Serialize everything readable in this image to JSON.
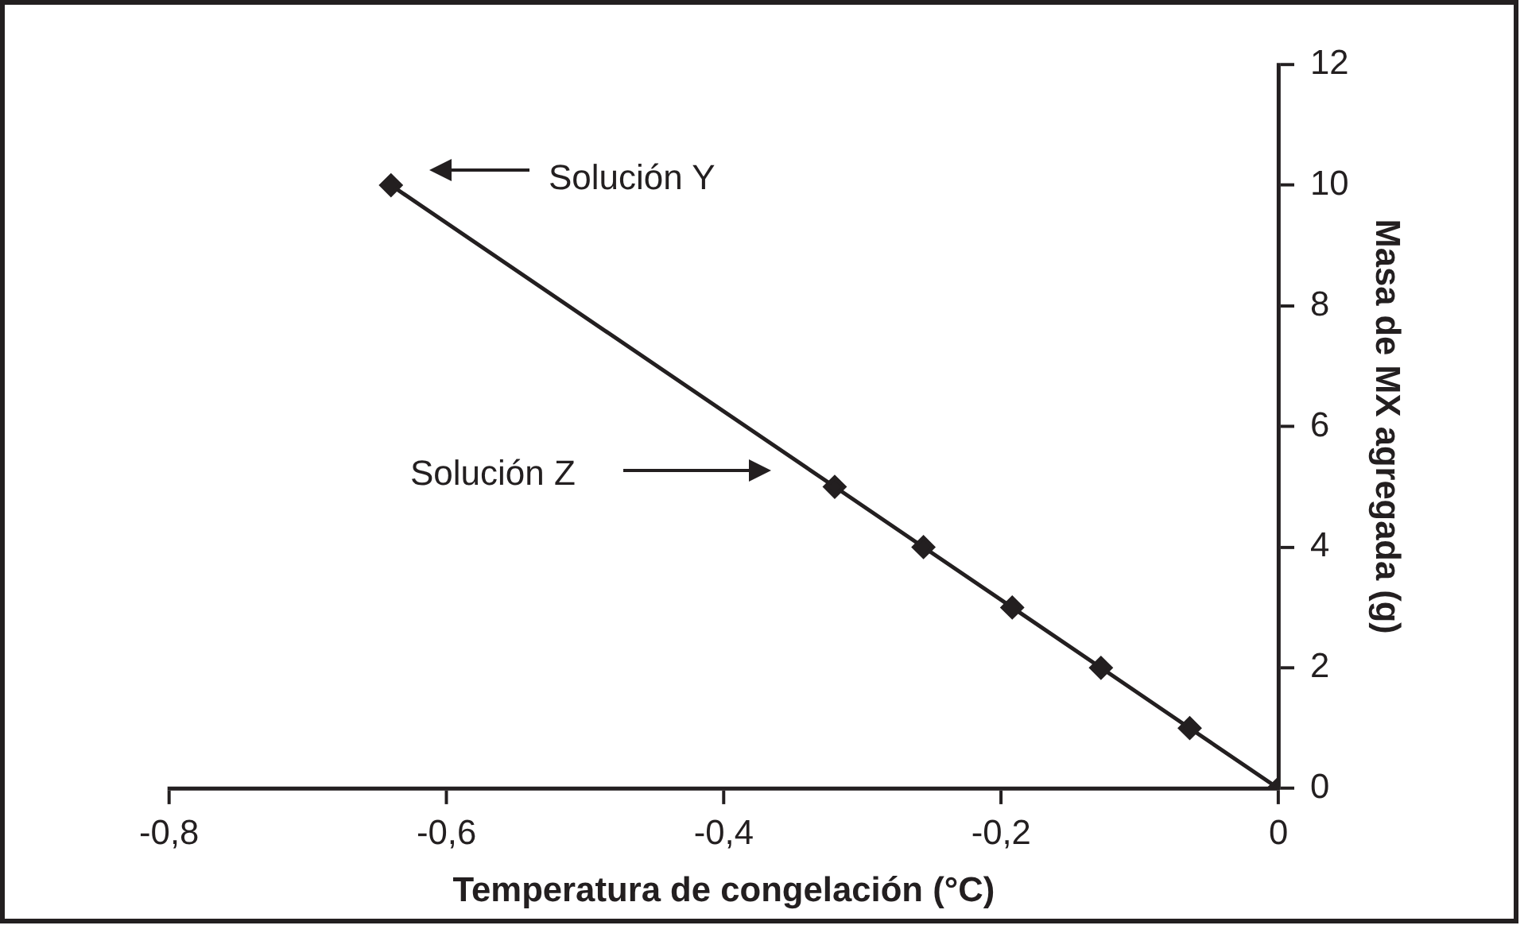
{
  "chart_data": {
    "type": "line",
    "xlabel": "Temperatura de congelación (°C)",
    "ylabel": "Masa de MX agregada (g)",
    "x": [
      -0.64,
      -0.32,
      -0.256,
      -0.192,
      -0.128,
      -0.064,
      0
    ],
    "series": [
      {
        "color": "#231f20",
        "values": [
          10,
          5,
          4,
          3,
          2,
          1,
          0
        ]
      }
    ],
    "xlim": [
      -0.8,
      0
    ],
    "xticks": [
      {
        "value": -0.8,
        "label": "-0,8"
      },
      {
        "value": -0.6,
        "label": "-0,6"
      },
      {
        "value": -0.4,
        "label": "-0,4"
      },
      {
        "value": -0.2,
        "label": "-0,2"
      },
      0
    ],
    "ylim": [
      0,
      12
    ],
    "yticks": [
      0,
      2,
      4,
      6,
      8,
      10,
      12
    ],
    "annotations": [
      "Solución Y",
      "Solución Z"
    ],
    "marker": "diamond",
    "line_style": "solid",
    "grid": false,
    "legend": false
  }
}
